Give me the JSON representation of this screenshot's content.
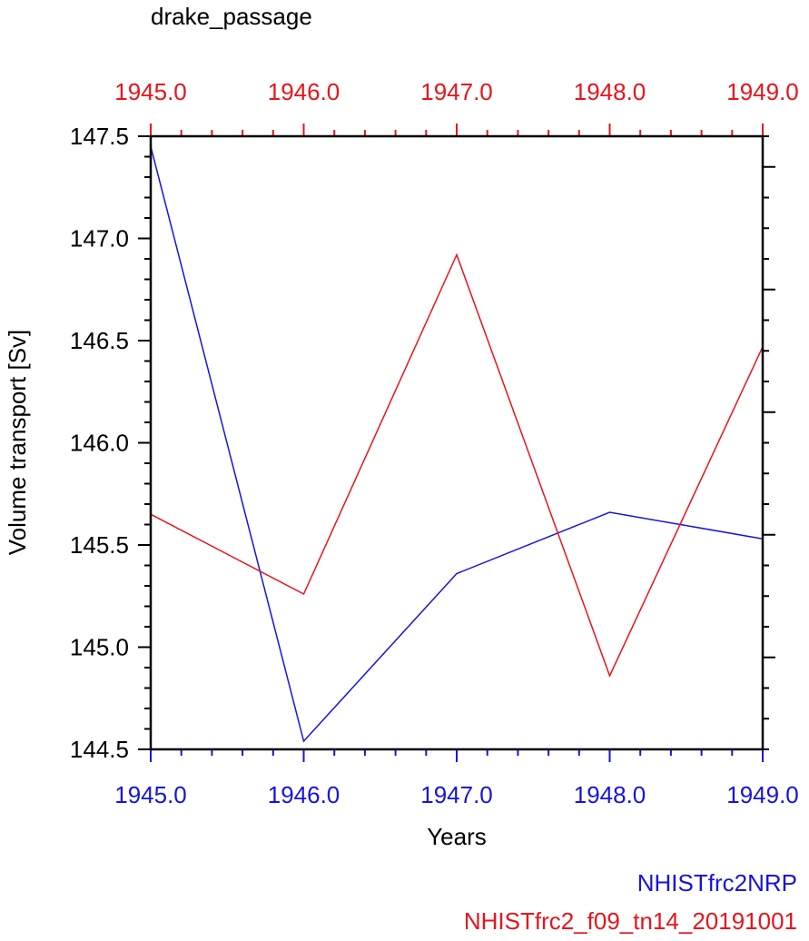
{
  "chart_data": {
    "type": "line",
    "title": "drake_passage",
    "xlabel": "Years",
    "ylabel": "Volume transport [Sv]",
    "xlim": [
      1945.0,
      1949.0
    ],
    "ylim": [
      144.5,
      147.5
    ],
    "x_ticks": [
      "1945.0",
      "1946.0",
      "1947.0",
      "1948.0",
      "1949.0"
    ],
    "y_ticks": [
      "144.5",
      "145.0",
      "145.5",
      "146.0",
      "146.5",
      "147.0",
      "147.5"
    ],
    "top_axis": {
      "ticks": [
        "1945.0",
        "1946.0",
        "1947.0",
        "1948.0",
        "1949.0"
      ],
      "color": "#e8141b"
    },
    "bottom_axis": {
      "color": "#1414e0"
    },
    "x": [
      1945.0,
      1946.0,
      1947.0,
      1948.0,
      1949.0
    ],
    "series": [
      {
        "name": "NHISTfrc2NRP",
        "color": "#1414e0",
        "values": [
          147.45,
          144.54,
          145.36,
          145.66,
          145.53
        ]
      },
      {
        "name": "NHISTfrc2_f09_tn14_20191001",
        "color": "#e8141b",
        "values": [
          145.65,
          145.26,
          146.92,
          144.86,
          146.47
        ]
      }
    ],
    "legend": "bottom-right"
  }
}
